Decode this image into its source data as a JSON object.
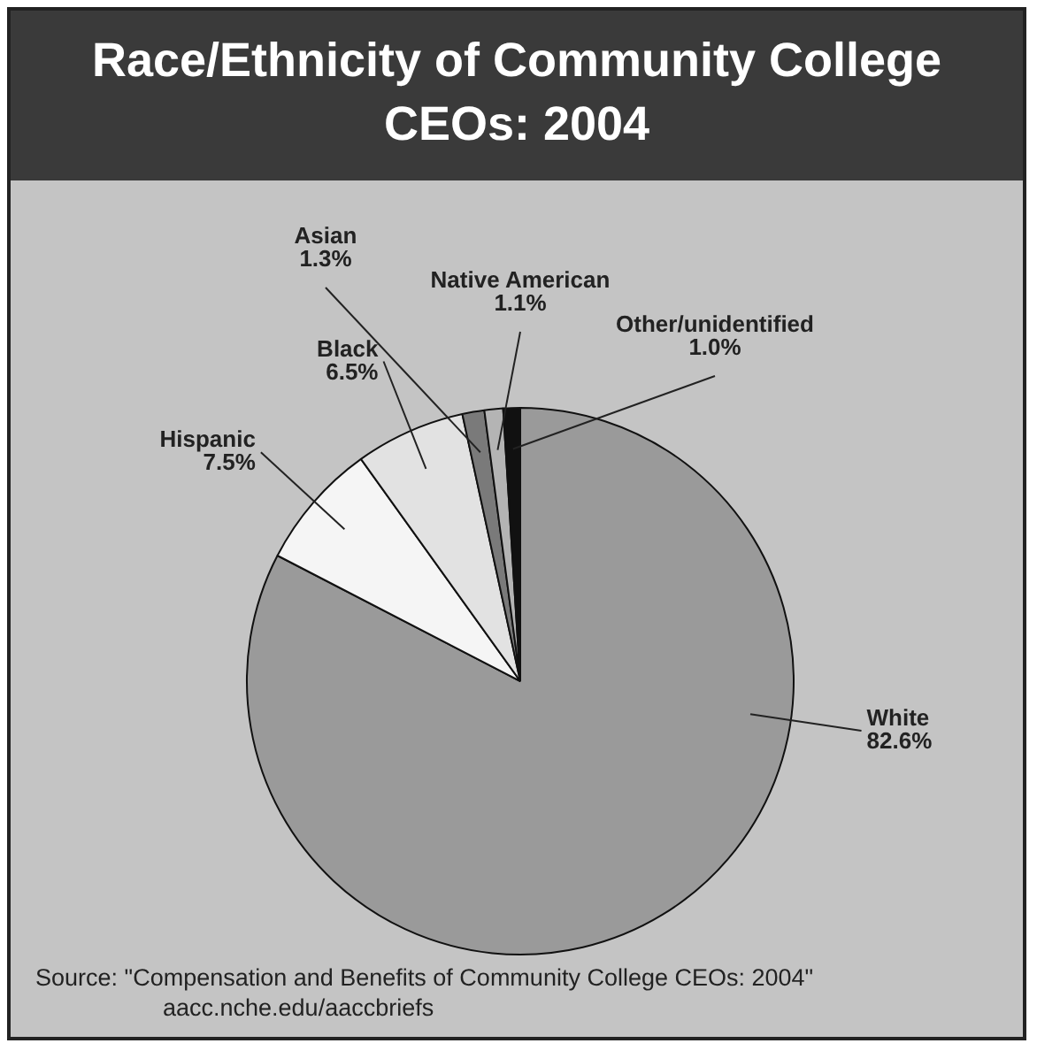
{
  "chart_data": {
    "type": "pie",
    "title": "Race/Ethnicity of Community College CEOs: 2004",
    "categories": [
      "White",
      "Hispanic",
      "Black",
      "Asian",
      "Native American",
      "Other/unidentified"
    ],
    "values": [
      82.6,
      7.5,
      6.5,
      1.3,
      1.1,
      1.0
    ],
    "value_labels": [
      "82.6%",
      "7.5%",
      "6.5%",
      "1.3%",
      "1.1%",
      "1.0%"
    ],
    "colors": [
      "#9a9a9a",
      "#f5f5f5",
      "#e2e2e2",
      "#7a7a7a",
      "#b4b4b4",
      "#111111"
    ],
    "legend": false,
    "annotations": [
      "Source: \"Compensation and Benefits of Community College CEOs: 2004\"",
      "aacc.nche.edu/aaccbriefs"
    ]
  }
}
